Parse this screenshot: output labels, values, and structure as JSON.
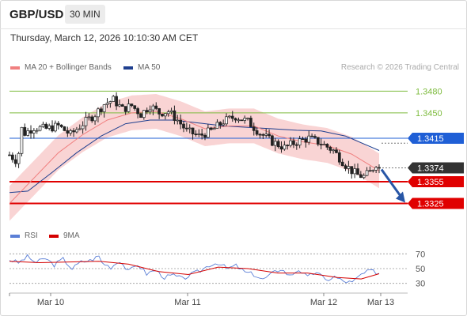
{
  "header": {
    "symbol": "GBP/USD",
    "timeframe": "30 MIN"
  },
  "datetime": "Thursday, March 12, 2026 10:10:30 AM CET",
  "legend": {
    "ma20": {
      "label": "MA 20 + Bollinger Bands",
      "color": "#f08080"
    },
    "ma50": {
      "label": "MA 50",
      "color": "#1f3f8f"
    }
  },
  "credit": "Research © 2026 Trading Central",
  "rsi_legend": {
    "rsi": {
      "label": "RSI",
      "color": "#5b7fd6"
    },
    "ma9": {
      "label": "9MA",
      "color": "#d40000"
    }
  },
  "colors": {
    "up": "#ffffff",
    "down": "#222222",
    "band": "#f7c9c9",
    "resistance": "#7dbb3d",
    "support": "#e00000",
    "pivot": "#1f5fd6",
    "arrow": "#2856a6"
  },
  "chart_data": [
    {
      "type": "candlestick",
      "ylim": [
        1.3295,
        1.35
      ],
      "x_ticks": [
        "Mar 10",
        "Mar 11",
        "Mar 12",
        "Mar 13"
      ],
      "levels": [
        {
          "value": 1.348,
          "label": "1.3480",
          "kind": "resistance"
        },
        {
          "value": 1.345,
          "label": "1.3450",
          "kind": "resistance"
        },
        {
          "value": 1.3415,
          "label": "1.3415",
          "kind": "pivot"
        },
        {
          "value": 1.3374,
          "label": "1.3374",
          "kind": "last"
        },
        {
          "value": 1.3355,
          "label": "1.3355",
          "kind": "support"
        },
        {
          "value": 1.3325,
          "label": "1.3325",
          "kind": "support"
        }
      ],
      "arrow": {
        "from": 1.3374,
        "to": 1.3325
      },
      "close_path": [
        [
          0,
          1.3392
        ],
        [
          2,
          1.3385
        ],
        [
          3,
          1.3395
        ],
        [
          4,
          1.3428
        ],
        [
          5,
          1.3422
        ],
        [
          8,
          1.343
        ],
        [
          12,
          1.3428
        ],
        [
          16,
          1.3432
        ],
        [
          20,
          1.342
        ],
        [
          24,
          1.3435
        ],
        [
          28,
          1.3448
        ],
        [
          31,
          1.3462
        ],
        [
          34,
          1.3468
        ],
        [
          37,
          1.3455
        ],
        [
          40,
          1.346
        ],
        [
          43,
          1.3448
        ],
        [
          46,
          1.346
        ],
        [
          49,
          1.345
        ],
        [
          52,
          1.3452
        ],
        [
          55,
          1.344
        ],
        [
          58,
          1.3425
        ],
        [
          62,
          1.3418
        ],
        [
          66,
          1.3425
        ],
        [
          70,
          1.3438
        ],
        [
          74,
          1.3445
        ],
        [
          78,
          1.3438
        ],
        [
          82,
          1.3422
        ],
        [
          86,
          1.341
        ],
        [
          90,
          1.3402
        ],
        [
          94,
          1.341
        ],
        [
          98,
          1.3415
        ],
        [
          102,
          1.3408
        ],
        [
          106,
          1.3398
        ],
        [
          110,
          1.3378
        ],
        [
          112,
          1.337
        ],
        [
          114,
          1.3364
        ],
        [
          116,
          1.3362
        ],
        [
          118,
          1.3368
        ],
        [
          120,
          1.338
        ],
        [
          121,
          1.3374
        ]
      ],
      "ma20_path": [
        [
          0,
          1.3325
        ],
        [
          8,
          1.336
        ],
        [
          16,
          1.3395
        ],
        [
          24,
          1.342
        ],
        [
          32,
          1.344
        ],
        [
          40,
          1.345
        ],
        [
          48,
          1.3452
        ],
        [
          56,
          1.3442
        ],
        [
          64,
          1.3428
        ],
        [
          72,
          1.3432
        ],
        [
          80,
          1.3432
        ],
        [
          88,
          1.3418
        ],
        [
          96,
          1.341
        ],
        [
          104,
          1.3405
        ],
        [
          112,
          1.3393
        ],
        [
          121,
          1.337
        ]
      ],
      "ma50_path": [
        [
          0,
          1.334
        ],
        [
          6,
          1.3342
        ],
        [
          14,
          1.3368
        ],
        [
          22,
          1.3395
        ],
        [
          30,
          1.3418
        ],
        [
          38,
          1.3435
        ],
        [
          46,
          1.344
        ],
        [
          54,
          1.344
        ],
        [
          62,
          1.3436
        ],
        [
          70,
          1.3432
        ],
        [
          78,
          1.343
        ],
        [
          86,
          1.3428
        ],
        [
          94,
          1.3426
        ],
        [
          102,
          1.3425
        ],
        [
          110,
          1.3418
        ],
        [
          121,
          1.3398
        ]
      ],
      "bb_width": 0.0024
    },
    {
      "type": "line",
      "ylim": [
        20,
        80
      ],
      "y_ticks": [
        "70",
        "50",
        "30"
      ],
      "series": [
        {
          "name": "RSI",
          "points": [
            [
              0,
              62
            ],
            [
              3,
              58
            ],
            [
              6,
              66
            ],
            [
              9,
              58
            ],
            [
              12,
              64
            ],
            [
              15,
              55
            ],
            [
              18,
              63
            ],
            [
              21,
              50
            ],
            [
              24,
              59
            ],
            [
              27,
              61
            ],
            [
              30,
              67
            ],
            [
              31,
              58
            ],
            [
              34,
              52
            ],
            [
              37,
              61
            ],
            [
              40,
              46
            ],
            [
              43,
              56
            ],
            [
              46,
              43
            ],
            [
              49,
              48
            ],
            [
              52,
              38
            ],
            [
              55,
              41
            ],
            [
              58,
              36
            ],
            [
              61,
              42
            ],
            [
              64,
              47
            ],
            [
              67,
              55
            ],
            [
              70,
              58
            ],
            [
              73,
              50
            ],
            [
              76,
              54
            ],
            [
              79,
              45
            ],
            [
              82,
              42
            ],
            [
              85,
              35
            ],
            [
              88,
              43
            ],
            [
              91,
              50
            ],
            [
              94,
              40
            ],
            [
              97,
              49
            ],
            [
              100,
              38
            ],
            [
              103,
              46
            ],
            [
              106,
              34
            ],
            [
              109,
              39
            ],
            [
              112,
              33
            ],
            [
              115,
              31
            ],
            [
              118,
              42
            ],
            [
              121,
              47
            ],
            [
              124,
              44
            ]
          ]
        },
        {
          "name": "9MA",
          "points": [
            [
              0,
              60
            ],
            [
              10,
              58
            ],
            [
              20,
              59
            ],
            [
              30,
              60
            ],
            [
              40,
              56
            ],
            [
              50,
              46
            ],
            [
              60,
              42
            ],
            [
              70,
              52
            ],
            [
              80,
              50
            ],
            [
              90,
              44
            ],
            [
              100,
              44
            ],
            [
              110,
              38
            ],
            [
              118,
              36
            ],
            [
              124,
              43
            ]
          ]
        }
      ]
    }
  ]
}
